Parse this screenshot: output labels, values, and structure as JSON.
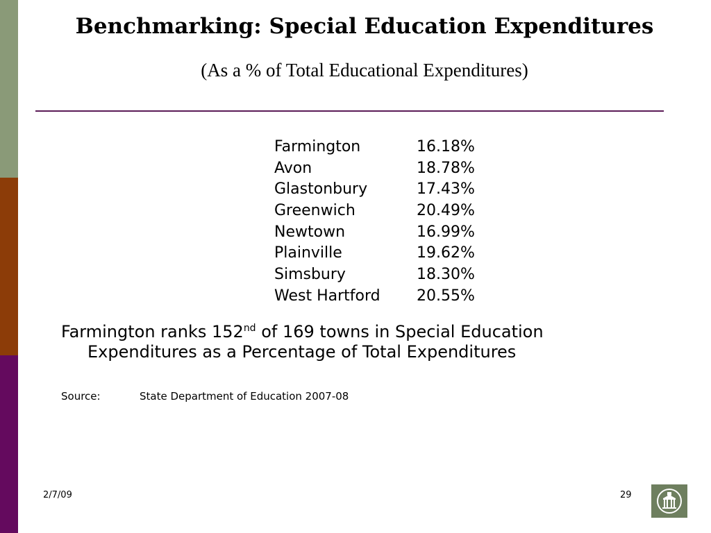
{
  "slide": {
    "title": "Benchmarking:  Special Education Expenditures",
    "subtitle": "(As a % of Total Educational Expenditures)",
    "rows": [
      {
        "town": "Farmington",
        "pct": "16.18%"
      },
      {
        "town": "Avon",
        "pct": "18.78%"
      },
      {
        "town": "Glastonbury",
        "pct": "17.43%"
      },
      {
        "town": "Greenwich",
        "pct": "20.49%"
      },
      {
        "town": "Newtown",
        "pct": "16.99%"
      },
      {
        "town": "Plainville",
        "pct": "19.62%"
      },
      {
        "town": "Simsbury",
        "pct": "18.30%"
      },
      {
        "town": "West Hartford",
        "pct": "20.55%"
      }
    ],
    "rank": {
      "before": "Farmington ranks 152",
      "sup": "nd",
      "after": " of 169 towns in Special Education",
      "line2": "Expenditures as a Percentage of Total Expenditures"
    },
    "source": {
      "label": "Source:",
      "text": "State Department of Education 2007-08"
    }
  },
  "footer": {
    "date": "2/7/09",
    "page": "29"
  },
  "colors": {
    "bar_green": "#8a9a78",
    "bar_orange": "#8c3c08",
    "bar_purple": "#640a5e",
    "rule": "#5a1a56",
    "logo_bg": "#6e7f5f"
  },
  "icons": {
    "logo": "town-hall-logo-icon"
  }
}
